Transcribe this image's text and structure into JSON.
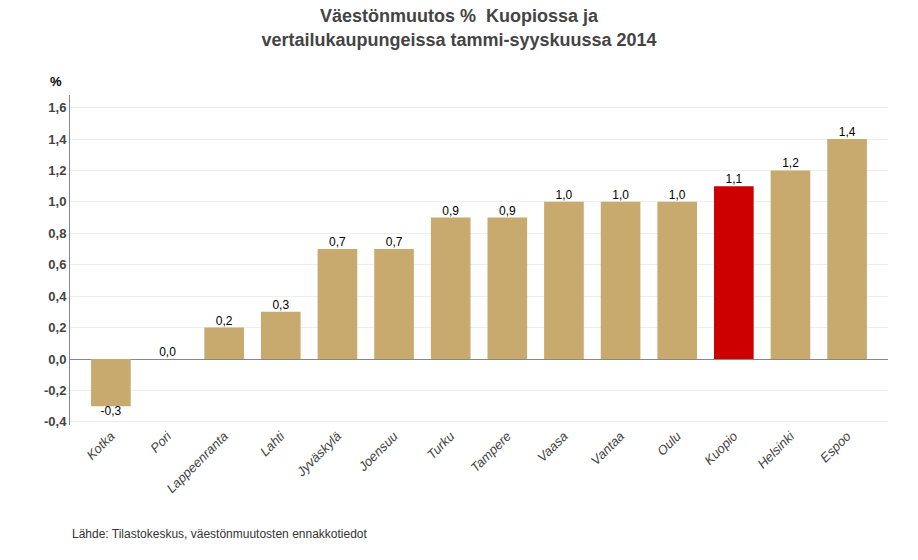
{
  "chart_data": {
    "type": "bar",
    "title": "Väestönmuutos %  Kuopiossa ja\nvertailukaupungeissa tammi-syyskuussa 2014",
    "ylabel": "%",
    "annotations": [
      "Lähde: Tilastokeskus, väestönmuutosten ennakkotiedot"
    ],
    "categories": [
      "Kotka",
      "Pori",
      "Lappeenranta",
      "Lahti",
      "Jyväskylä",
      "Joensuu",
      "Turku",
      "Tampere",
      "Vaasa",
      "Vantaa",
      "Oulu",
      "Kuopio",
      "Helsinki",
      "Espoo"
    ],
    "values": [
      -0.3,
      0.0,
      0.2,
      0.3,
      0.7,
      0.7,
      0.9,
      0.9,
      1.0,
      1.0,
      1.0,
      1.1,
      1.2,
      1.4
    ],
    "value_labels": [
      "-0,3",
      "0,0",
      "0,2",
      "0,3",
      "0,7",
      "0,7",
      "0,9",
      "0,9",
      "1,0",
      "1,0",
      "1,0",
      "1,1",
      "1,2",
      "1,4"
    ],
    "colors": [
      "#c8a96e",
      "#c8a96e",
      "#c8a96e",
      "#c8a96e",
      "#c8a96e",
      "#c8a96e",
      "#c8a96e",
      "#c8a96e",
      "#c8a96e",
      "#c8a96e",
      "#c8a96e",
      "#cc0000",
      "#c8a96e",
      "#c8a96e"
    ],
    "ylim": [
      -0.42,
      1.68
    ],
    "yticks": [
      {
        "value": -0.4,
        "label": "-0,4"
      },
      {
        "value": -0.2,
        "label": "-0,2"
      },
      {
        "value": 0.0,
        "label": "0,0"
      },
      {
        "value": 0.2,
        "label": "0,2"
      },
      {
        "value": 0.4,
        "label": "0,4"
      },
      {
        "value": 0.6,
        "label": "0,6"
      },
      {
        "value": 0.8,
        "label": "0,8"
      },
      {
        "value": 1.0,
        "label": "1,0"
      },
      {
        "value": 1.2,
        "label": "1,2"
      },
      {
        "value": 1.4,
        "label": "1,4"
      },
      {
        "value": 1.6,
        "label": "1,6"
      }
    ],
    "grid": true,
    "data_labels": true
  }
}
